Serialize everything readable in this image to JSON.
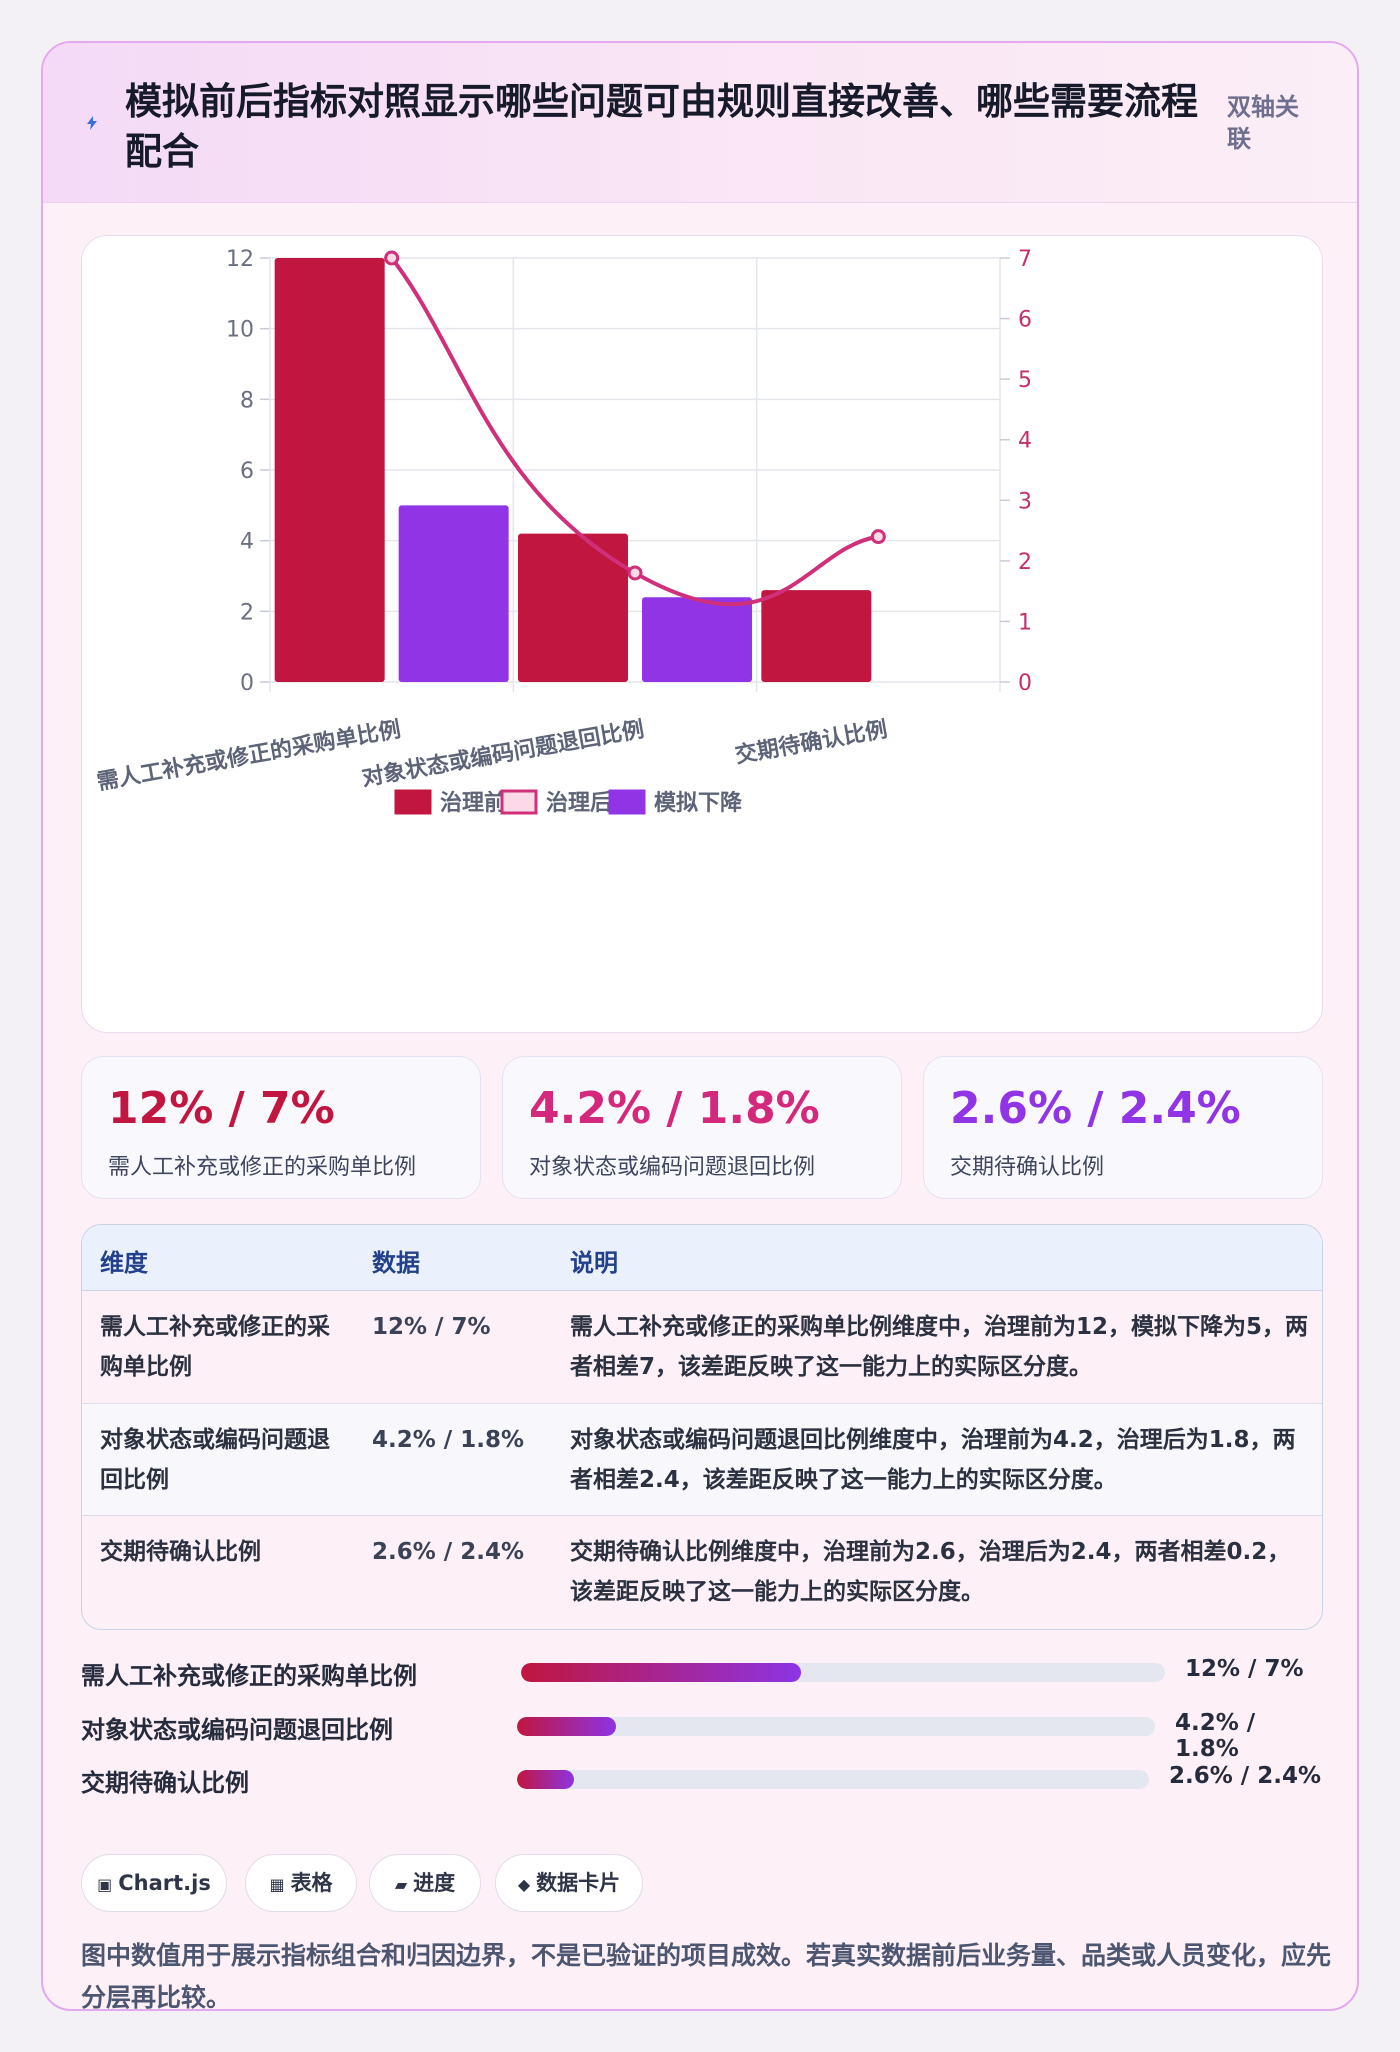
{
  "header": {
    "icon": "lightning-icon",
    "title": "模拟前后指标对照显示哪些问题可由规则直接改善、哪些需要流程配合",
    "tag": "双轴关联"
  },
  "colors": {
    "before": "#c0163f",
    "after": "#fbd9e7",
    "simulated": "#9034e6",
    "line": "#d0307a"
  },
  "chart_data": {
    "type": "bar",
    "categories": [
      "需人工补充或修正的采购单比例",
      "对象状态或编码问题退回比例",
      "交期待确认比例"
    ],
    "series": [
      {
        "name": "治理前",
        "type": "bar",
        "axis": "left",
        "values": [
          12,
          4.2,
          2.6
        ]
      },
      {
        "name": "模拟下降",
        "type": "bar",
        "axis": "left",
        "values": [
          5,
          2.4,
          null
        ]
      },
      {
        "name": "治理后",
        "type": "line",
        "axis": "right",
        "values": [
          7,
          1.8,
          2.4
        ]
      }
    ],
    "ylim_left": [
      0,
      12
    ],
    "ylim_right": [
      0,
      7
    ],
    "yticks_left": [
      "0",
      "2",
      "4",
      "6",
      "8",
      "10",
      "12"
    ],
    "yticks_right": [
      "0",
      "1",
      "2",
      "3",
      "4",
      "5",
      "6",
      "7"
    ],
    "legend": [
      "治理前",
      "治理后",
      "模拟下降"
    ],
    "legend_position": "bottom",
    "grid": true
  },
  "kpis": [
    {
      "value": "12% / 7%",
      "label": "需人工补充或修正的采购单比例",
      "color": "#c0163f"
    },
    {
      "value": "4.2% / 1.8%",
      "label": "对象状态或编码问题退回比例",
      "color": "#d4287c"
    },
    {
      "value": "2.6% / 2.4%",
      "label": "交期待确认比例",
      "color": "#9034e6"
    }
  ],
  "table": {
    "headers": [
      "维度",
      "数据",
      "说明"
    ],
    "rows": [
      {
        "dimension": "需人工补充或修正的采购单比例",
        "data": "12% / 7%",
        "note": "需人工补充或修正的采购单比例维度中，治理前为12，模拟下降为5，两者相差7，该差距反映了这一能力上的实际区分度。"
      },
      {
        "dimension": "对象状态或编码问题退回比例",
        "data": "4.2% / 1.8%",
        "note": "对象状态或编码问题退回比例维度中，治理前为4.2，治理后为1.8，两者相差2.4，该差距反映了这一能力上的实际区分度。"
      },
      {
        "dimension": "交期待确认比例",
        "data": "2.6% / 2.4%",
        "note": "交期待确认比例维度中，治理前为2.6，治理后为2.4，两者相差0.2，该差距反映了这一能力上的实际区分度。"
      }
    ]
  },
  "progress": [
    {
      "label": "需人工补充或修正的采购单比例",
      "value": "12% / 7%",
      "fill": 0.435
    },
    {
      "label": "对象状态或编码问题退回比例",
      "value": "4.2% / 1.8%",
      "fill": 0.155
    },
    {
      "label": "交期待确认比例",
      "value": "2.6% / 2.4%",
      "fill": 0.09
    }
  ],
  "chips": [
    {
      "icon": "▣",
      "label": "Chart.js"
    },
    {
      "icon": "▦",
      "label": "表格"
    },
    {
      "icon": "▰",
      "label": "进度"
    },
    {
      "icon": "◆",
      "label": "数据卡片"
    }
  ],
  "footnote": "图中数值用于展示指标组合和归因边界，不是已验证的项目成效。若真实数据前后业务量、品类或人员变化，应先分层再比较。"
}
